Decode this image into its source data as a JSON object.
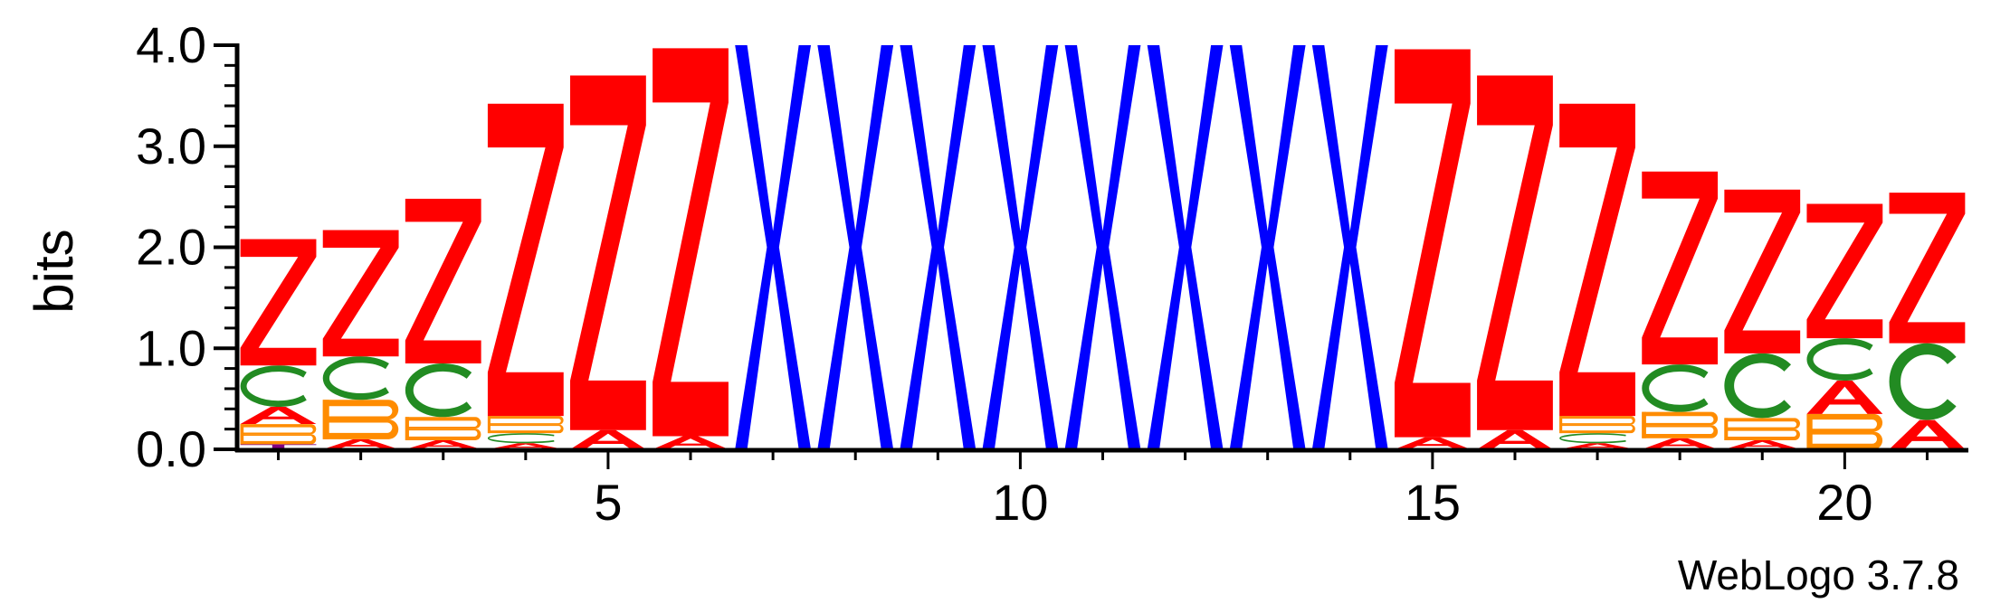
{
  "chart_data": {
    "type": "sequence-logo",
    "ylabel": "bits",
    "ylim": [
      0,
      4.0
    ],
    "y_ticks": [
      0.0,
      1.0,
      2.0,
      3.0,
      4.0
    ],
    "y_tick_labels": [
      "0.0",
      "1.0",
      "2.0",
      "3.0",
      "4.0"
    ],
    "x_ticks": [
      5,
      10,
      15,
      20
    ],
    "x_tick_labels": [
      "5",
      "10",
      "15",
      "20"
    ],
    "grid": false,
    "legend": "none",
    "colors": {
      "Z": "#ff0000",
      "X": "#0000ff",
      "C": "#228b22",
      "B": "#ff8c00",
      "A": "#ff0000",
      "T": "#800080"
    },
    "positions": [
      {
        "pos": 1,
        "stack": [
          [
            "T",
            0.05
          ],
          [
            "B",
            0.2
          ],
          [
            "A",
            0.17
          ],
          [
            "C",
            0.41
          ],
          [
            "Z",
            1.25
          ]
        ]
      },
      {
        "pos": 2,
        "stack": [
          [
            "A",
            0.1
          ],
          [
            "B",
            0.39
          ],
          [
            "C",
            0.43
          ],
          [
            "Z",
            1.25
          ]
        ]
      },
      {
        "pos": 3,
        "stack": [
          [
            "A",
            0.09
          ],
          [
            "B",
            0.23
          ],
          [
            "C",
            0.53
          ],
          [
            "Z",
            1.63
          ]
        ]
      },
      {
        "pos": 4,
        "stack": [
          [
            "A",
            0.06
          ],
          [
            "C",
            0.1
          ],
          [
            "B",
            0.17
          ],
          [
            "Z",
            3.09
          ]
        ]
      },
      {
        "pos": 5,
        "stack": [
          [
            "A",
            0.19
          ],
          [
            "Z",
            3.51
          ]
        ]
      },
      {
        "pos": 6,
        "stack": [
          [
            "A",
            0.13
          ],
          [
            "Z",
            3.84
          ]
        ]
      },
      {
        "pos": 7,
        "stack": [
          [
            "X",
            4.0
          ]
        ]
      },
      {
        "pos": 8,
        "stack": [
          [
            "X",
            4.0
          ]
        ]
      },
      {
        "pos": 9,
        "stack": [
          [
            "X",
            4.0
          ]
        ]
      },
      {
        "pos": 10,
        "stack": [
          [
            "X",
            4.0
          ]
        ]
      },
      {
        "pos": 11,
        "stack": [
          [
            "X",
            4.0
          ]
        ]
      },
      {
        "pos": 12,
        "stack": [
          [
            "X",
            4.0
          ]
        ]
      },
      {
        "pos": 13,
        "stack": [
          [
            "X",
            4.0
          ]
        ]
      },
      {
        "pos": 14,
        "stack": [
          [
            "X",
            4.0
          ]
        ]
      },
      {
        "pos": 15,
        "stack": [
          [
            "A",
            0.12
          ],
          [
            "Z",
            3.84
          ]
        ]
      },
      {
        "pos": 16,
        "stack": [
          [
            "A",
            0.19
          ],
          [
            "Z",
            3.51
          ]
        ]
      },
      {
        "pos": 17,
        "stack": [
          [
            "A",
            0.06
          ],
          [
            "C",
            0.1
          ],
          [
            "B",
            0.17
          ],
          [
            "Z",
            3.09
          ]
        ]
      },
      {
        "pos": 18,
        "stack": [
          [
            "A",
            0.11
          ],
          [
            "B",
            0.26
          ],
          [
            "C",
            0.47
          ],
          [
            "Z",
            1.91
          ]
        ]
      },
      {
        "pos": 19,
        "stack": [
          [
            "A",
            0.09
          ],
          [
            "B",
            0.22
          ],
          [
            "C",
            0.64
          ],
          [
            "Z",
            1.62
          ]
        ]
      },
      {
        "pos": 20,
        "stack": [
          [
            "B",
            0.35
          ],
          [
            "A",
            0.33
          ],
          [
            "C",
            0.42
          ],
          [
            "Z",
            1.33
          ]
        ]
      },
      {
        "pos": 21,
        "stack": [
          [
            "A",
            0.29
          ],
          [
            "C",
            0.76
          ],
          [
            "Z",
            1.49
          ]
        ]
      }
    ]
  },
  "footer": {
    "credit": "WebLogo 3.7.8"
  }
}
